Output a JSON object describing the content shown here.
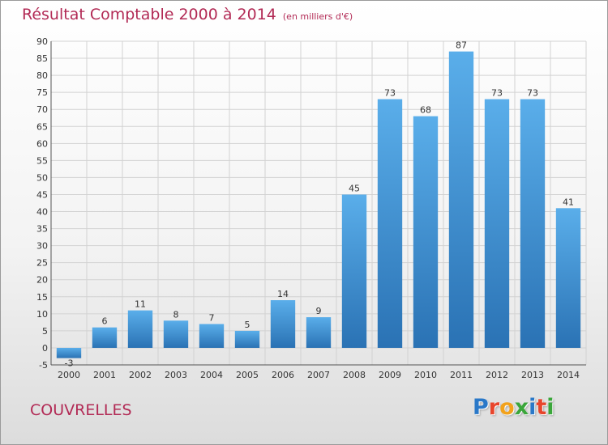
{
  "header": {
    "title": "Résultat Comptable 2000 à 2014",
    "subtitle": "(en milliers d'€)"
  },
  "place": "COUVRELLES",
  "logo": {
    "text": "Proxiti",
    "letter_colors": [
      "#2a78c8",
      "#e8452c",
      "#f2a21c",
      "#3aa63a",
      "#2a78c8",
      "#e8452c",
      "#3aa63a"
    ]
  },
  "colors": {
    "bar_top": "#5aaeea",
    "bar_bottom": "#2a72b4",
    "grid": "#d2d2d2",
    "accent": "#b22a55"
  },
  "chart_data": {
    "type": "bar",
    "title": "Résultat Comptable 2000 à 2014",
    "subtitle": "(en milliers d'€)",
    "categories": [
      "2000",
      "2001",
      "2002",
      "2003",
      "2004",
      "2005",
      "2006",
      "2007",
      "2008",
      "2009",
      "2010",
      "2011",
      "2012",
      "2013",
      "2014"
    ],
    "values": [
      -3,
      6,
      11,
      8,
      7,
      5,
      14,
      9,
      45,
      73,
      68,
      87,
      73,
      73,
      41
    ],
    "data_labels": [
      "-3",
      "6",
      "11",
      "8",
      "7",
      "5",
      "14",
      "9",
      "45",
      "73",
      "68",
      "87",
      "73",
      "73",
      "41"
    ],
    "ylim": [
      -5,
      90
    ],
    "yticks": [
      -5,
      0,
      5,
      10,
      15,
      20,
      25,
      30,
      35,
      40,
      45,
      50,
      55,
      60,
      65,
      70,
      75,
      80,
      85,
      90
    ],
    "grid": true,
    "legend": "none"
  }
}
